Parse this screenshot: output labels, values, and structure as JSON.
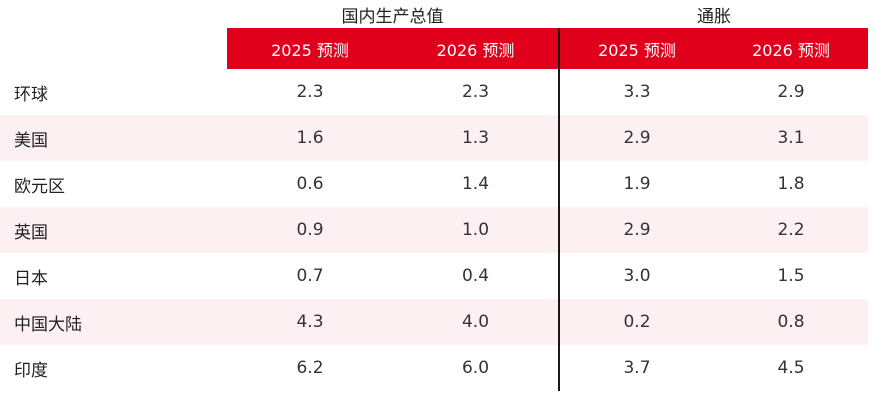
{
  "chart_data": {
    "type": "table",
    "column_groups": [
      {
        "label": "国内生产总值",
        "columns": [
          "2025 预测",
          "2026 预测"
        ]
      },
      {
        "label": "通胀",
        "columns": [
          "2025 预测",
          "2026 预测"
        ]
      }
    ],
    "header_color": "#e0001b",
    "stripe_color": "#fdf0f2",
    "rows": [
      {
        "label": "环球",
        "values": [
          "2.3",
          "2.3",
          "3.3",
          "2.9"
        ]
      },
      {
        "label": "美国",
        "values": [
          "1.6",
          "1.3",
          "2.9",
          "3.1"
        ]
      },
      {
        "label": "欧元区",
        "values": [
          "0.6",
          "1.4",
          "1.9",
          "1.8"
        ]
      },
      {
        "label": "英国",
        "values": [
          "0.9",
          "1.0",
          "2.9",
          "2.2"
        ]
      },
      {
        "label": "日本",
        "values": [
          "0.7",
          "0.4",
          "3.0",
          "1.5"
        ]
      },
      {
        "label": "中国大陆",
        "values": [
          "4.3",
          "4.0",
          "0.2",
          "0.8"
        ]
      },
      {
        "label": "印度",
        "values": [
          "6.2",
          "6.0",
          "3.7",
          "4.5"
        ]
      }
    ]
  }
}
